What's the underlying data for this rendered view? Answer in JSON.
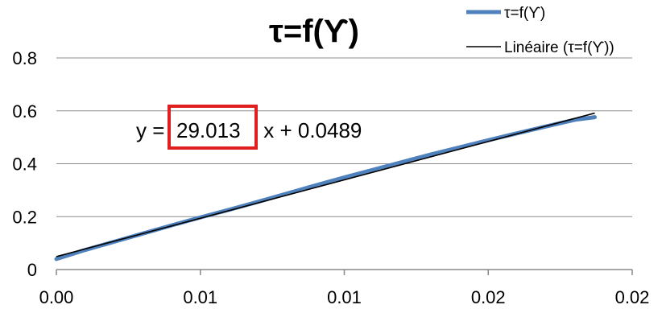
{
  "chart_data": {
    "type": "line",
    "title": "τ=f(ϒ)",
    "xlabel": "",
    "ylabel": "",
    "x_tick_labels": [
      "0.00",
      "0.01",
      "0.01",
      "0.02",
      "0.02"
    ],
    "x_ticks": [
      0.0,
      0.005,
      0.01,
      0.015,
      0.02
    ],
    "xlim": [
      0.0,
      0.02
    ],
    "y_tick_labels": [
      "0",
      "0.2",
      "0.4",
      "0.6",
      "0.8"
    ],
    "y_ticks": [
      0,
      0.2,
      0.4,
      0.6,
      0.8
    ],
    "ylim": [
      0,
      0.8
    ],
    "grid": {
      "horizontal": true,
      "vertical": false
    },
    "legend_position": "top-right",
    "series": [
      {
        "name": "τ=f(ϒ)",
        "color": "#4f81bd",
        "x": [
          0.0,
          0.001,
          0.002,
          0.003,
          0.004,
          0.005,
          0.006,
          0.007,
          0.008,
          0.009,
          0.01,
          0.011,
          0.012,
          0.013,
          0.014,
          0.015,
          0.016,
          0.017,
          0.018,
          0.0187
        ],
        "y": [
          0.04,
          0.074,
          0.105,
          0.136,
          0.167,
          0.197,
          0.226,
          0.256,
          0.287,
          0.318,
          0.348,
          0.377,
          0.406,
          0.435,
          0.462,
          0.489,
          0.515,
          0.541,
          0.566,
          0.576
        ]
      }
    ],
    "trendline": {
      "name": "Linéaire (τ=f(ϒ))",
      "color": "#000000",
      "slope": 29.013,
      "intercept": 0.0489,
      "x_range": [
        0.0,
        0.0187
      ]
    },
    "annotation": {
      "prefix": "y = ",
      "slope_text": "29.013",
      "suffix": " x + 0.0489",
      "highlight_color": "#e02020"
    }
  }
}
